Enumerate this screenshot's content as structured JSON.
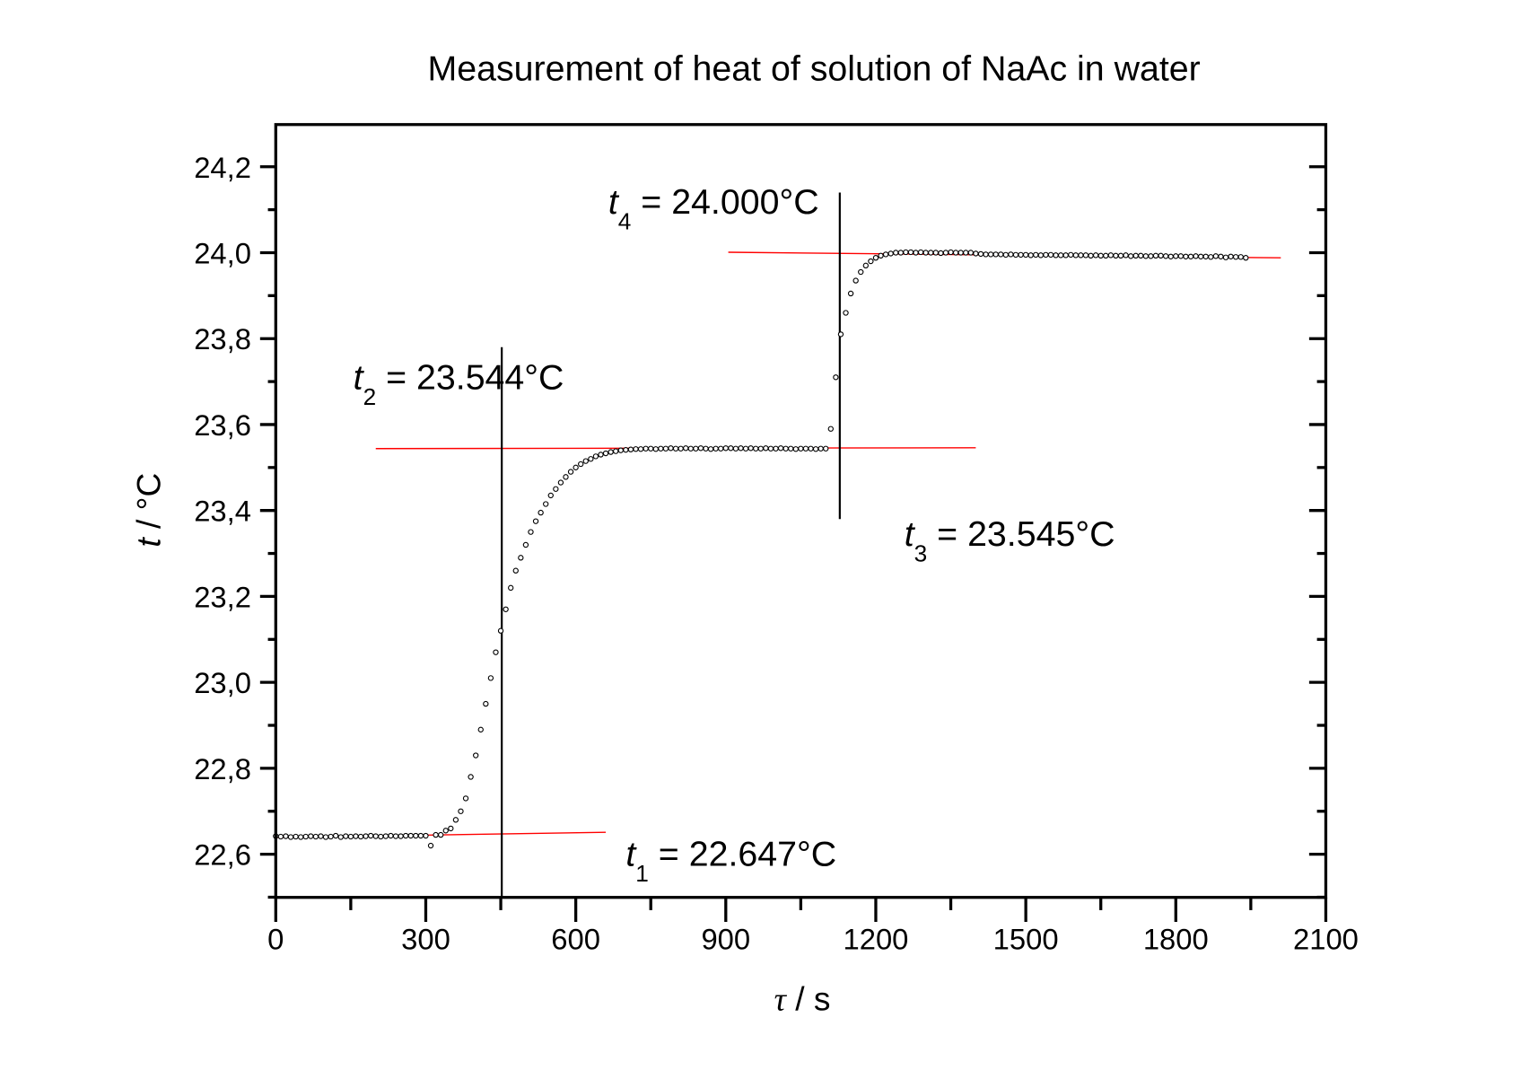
{
  "chart_data": {
    "type": "scatter",
    "title": "Measurement of heat of solution of NaAc in water",
    "xlabel_symbol": "τ",
    "xlabel_unit": " / s",
    "ylabel_symbol": "t",
    "ylabel_unit": " / °C",
    "xlim": [
      0,
      2100
    ],
    "ylim": [
      22.5,
      24.3
    ],
    "x_ticks": [
      "0",
      "300",
      "600",
      "900",
      "1200",
      "1500",
      "1800",
      "2100"
    ],
    "x_tick_values": [
      0,
      300,
      600,
      900,
      1200,
      1500,
      1800,
      2100
    ],
    "y_ticks": [
      "22,6",
      "22,8",
      "23,0",
      "23,2",
      "23,4",
      "23,6",
      "23,8",
      "24,0",
      "24,2"
    ],
    "y_tick_values": [
      22.6,
      22.8,
      23.0,
      23.2,
      23.4,
      23.6,
      23.8,
      24.0,
      24.2
    ],
    "grid": false,
    "series": [
      {
        "name": "temperature",
        "x_start": 0,
        "x_step": 10,
        "values": [
          22.642,
          22.641,
          22.642,
          22.64,
          22.641,
          22.64,
          22.641,
          22.642,
          22.641,
          22.642,
          22.64,
          22.641,
          22.643,
          22.64,
          22.642,
          22.641,
          22.642,
          22.641,
          22.642,
          22.643,
          22.642,
          22.641,
          22.642,
          22.643,
          22.642,
          22.642,
          22.643,
          22.643,
          22.643,
          22.643,
          22.643,
          22.62,
          22.645,
          22.645,
          22.655,
          22.66,
          22.68,
          22.7,
          22.73,
          22.78,
          22.83,
          22.89,
          22.95,
          23.01,
          23.07,
          23.12,
          23.17,
          23.22,
          23.26,
          23.29,
          23.32,
          23.35,
          23.375,
          23.395,
          23.415,
          23.435,
          23.45,
          23.465,
          23.478,
          23.49,
          23.5,
          23.508,
          23.515,
          23.52,
          23.526,
          23.53,
          23.533,
          23.536,
          23.538,
          23.54,
          23.541,
          23.542,
          23.543,
          23.543,
          23.544,
          23.544,
          23.543,
          23.544,
          23.544,
          23.545,
          23.544,
          23.544,
          23.545,
          23.544,
          23.544,
          23.545,
          23.544,
          23.543,
          23.544,
          23.544,
          23.545,
          23.545,
          23.544,
          23.545,
          23.544,
          23.545,
          23.544,
          23.544,
          23.545,
          23.544,
          23.544,
          23.545,
          23.544,
          23.544,
          23.543,
          23.544,
          23.544,
          23.544,
          23.543,
          23.544,
          23.544,
          23.59,
          23.71,
          23.81,
          23.86,
          23.905,
          23.935,
          23.955,
          23.97,
          23.98,
          23.988,
          23.993,
          23.996,
          23.998,
          24.0,
          24.0,
          24.001,
          24.001,
          24.0,
          24.001,
          24.0,
          24.0,
          24.0,
          23.999,
          24.0,
          24.001,
          24.0,
          24.0,
          24.0,
          24.0,
          23.998,
          23.997,
          23.996,
          23.996,
          23.996,
          23.996,
          23.995,
          23.996,
          23.995,
          23.995,
          23.995,
          23.994,
          23.995,
          23.994,
          23.995,
          23.995,
          23.994,
          23.994,
          23.994,
          23.995,
          23.994,
          23.994,
          23.994,
          23.993,
          23.994,
          23.993,
          23.993,
          23.994,
          23.993,
          23.993,
          23.994,
          23.992,
          23.993,
          23.993,
          23.992,
          23.992,
          23.993,
          23.993,
          23.992,
          23.991,
          23.992,
          23.992,
          23.991,
          23.991,
          23.992,
          23.991,
          23.991,
          23.99,
          23.992,
          23.991,
          23.989,
          23.991,
          23.99,
          23.99,
          23.988
        ]
      }
    ],
    "fit_lines": [
      {
        "x": [
          0,
          660
        ],
        "y": [
          22.639,
          22.651
        ]
      },
      {
        "x": [
          200,
          1400
        ],
        "y": [
          23.544,
          23.546
        ]
      },
      {
        "x": [
          905,
          2010
        ],
        "y": [
          24.001,
          23.988
        ]
      }
    ],
    "vertical_lines": [
      {
        "x": 452,
        "y": [
          22.5,
          23.78
        ]
      },
      {
        "x": 1128,
        "y": [
          23.38,
          24.14
        ]
      }
    ],
    "annotations": [
      {
        "sym": "t",
        "sub": "1",
        "text": " = 22.647°C",
        "x": 700,
        "y": 22.6
      },
      {
        "sym": "t",
        "sub": "2",
        "text": " = 23.544°C",
        "x": 155,
        "y": 23.71
      },
      {
        "sym": "t",
        "sub": "3",
        "text": " = 23.545°C",
        "x": 1257,
        "y": 23.345
      },
      {
        "sym": "t",
        "sub": "4",
        "text": " = 24.000°C",
        "x": 665,
        "y": 24.118
      }
    ],
    "colors": {
      "points": "#000000",
      "fit": "#ff0000",
      "axes": "#000000"
    }
  }
}
